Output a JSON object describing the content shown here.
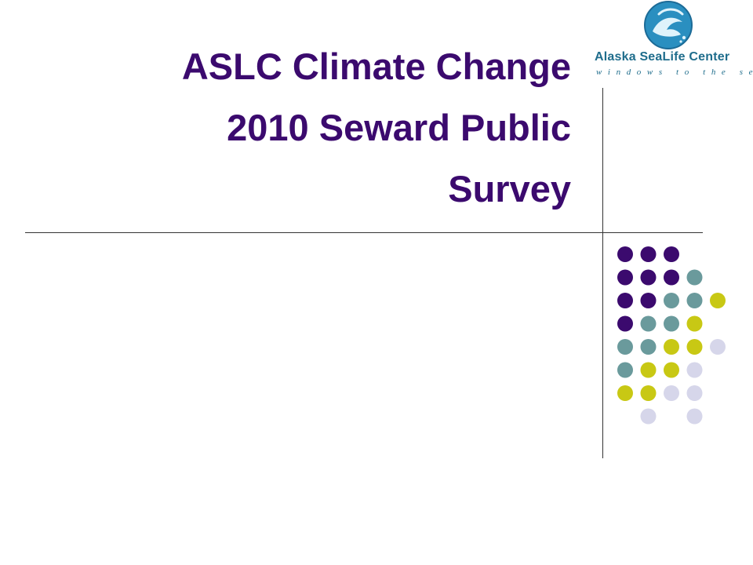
{
  "slide": {
    "title_lines": [
      "ASLC Climate Change",
      "2010 Seward Public",
      "Survey"
    ]
  },
  "logo": {
    "name": "Alaska SeaLife Center",
    "tagline": "windows to the sea",
    "emblem": "fish-globe-icon",
    "color": "#1f6d8c"
  },
  "colors": {
    "title": "#3b0a6e",
    "dot_purple": "#3b0a6e",
    "dot_teal": "#6a9a9c",
    "dot_yellow": "#c8c814",
    "dot_lavender": "#d6d6ea"
  },
  "dot_grid": {
    "rows": [
      [
        "purple",
        "purple",
        "purple",
        null,
        null
      ],
      [
        "purple",
        "purple",
        "purple",
        "teal",
        null
      ],
      [
        "purple",
        "purple",
        "teal",
        "teal",
        "yellow"
      ],
      [
        "purple",
        "teal",
        "teal",
        "yellow",
        null
      ],
      [
        "teal",
        "teal",
        "yellow",
        "yellow",
        "lavender"
      ],
      [
        "teal",
        "yellow",
        "yellow",
        "lavender",
        null
      ],
      [
        "yellow",
        "yellow",
        "lavender",
        "lavender",
        null
      ],
      [
        null,
        "lavender",
        null,
        "lavender",
        null
      ]
    ]
  }
}
